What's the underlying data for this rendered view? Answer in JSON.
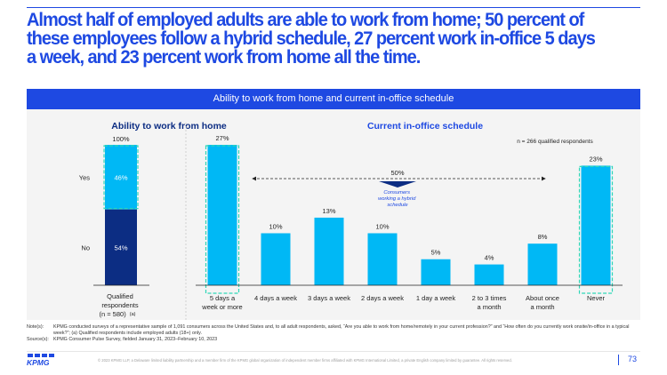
{
  "slide": {
    "headline": "Almost half of employed adults are able to work from home; 50 percent of these employees follow a hybrid schedule, 27 percent work in-office 5 days a week, and 23 percent work from home all the time.",
    "banner": "Ability to work from home and current in-office schedule",
    "page_number": "73",
    "brand_color": "#1e49e2"
  },
  "chart_data": [
    {
      "type": "bar",
      "title": "Ability to work from home",
      "stacked": true,
      "categories": [
        "Qualified respondents (n = 580)"
      ],
      "category_label_lines": [
        "Qualified",
        "respondents",
        "(n = 580)"
      ],
      "category_sup": "(a)",
      "series": [
        {
          "name": "Yes",
          "values": [
            46
          ],
          "label": "46%",
          "color": "#00b8f5"
        },
        {
          "name": "No",
          "values": [
            54
          ],
          "label": "54%",
          "color": "#0c2d83"
        }
      ],
      "total_label": "100%",
      "ylim": [
        0,
        100
      ]
    },
    {
      "type": "bar",
      "title": "Current in-office schedule",
      "note": "n = 266 qualified respondents",
      "categories": [
        "5 days a week or more",
        "4 days a week",
        "3 days a week",
        "2 days a week",
        "1 day a week",
        "2 to 3 times a month",
        "About once a month",
        "Never"
      ],
      "category_label_lines": [
        [
          "5 days a",
          "week or more"
        ],
        [
          "4 days a week"
        ],
        [
          "3 days a week"
        ],
        [
          "2 days a week"
        ],
        [
          "1 day a week"
        ],
        [
          "2 to 3 times",
          "a month"
        ],
        [
          "About once",
          "a month"
        ],
        [
          "Never"
        ]
      ],
      "values": [
        27,
        10,
        13,
        10,
        5,
        4,
        8,
        23
      ],
      "labels": [
        "27%",
        "10%",
        "13%",
        "10%",
        "5%",
        "4%",
        "8%",
        "23%"
      ],
      "color": "#00b8f5",
      "ylim": [
        0,
        27
      ],
      "highlighted": [
        "5 days a week or more",
        "Never"
      ],
      "annotation": {
        "value_label": "50%",
        "text_lines": [
          "Consumers",
          "working a hybrid",
          "schedule"
        ]
      }
    }
  ],
  "notes": [
    {
      "label": "Note(s):",
      "text": "KPMG conducted surveys of a representative sample of 1,091 consumers across the United States and, to all adult respondents, asked, “Are you able to work from home/remotely in your current profession?” and “How often do you currently work onsite/in-office in a typical week?”; (a) Qualified respondents include employed adults (18+) only."
    },
    {
      "label": "Source(s):",
      "text": "KPMG Consumer Pulse Survey, fielded January 31, 2023–February 10, 2023"
    }
  ],
  "footer": {
    "logo_text": "KPMG",
    "legal": "© 2023 KPMG LLP, a Delaware limited liability partnership and a member firm of the KPMG global organization of independent member firms affiliated with KPMG International Limited, a private English company limited by guarantee. All rights reserved."
  }
}
